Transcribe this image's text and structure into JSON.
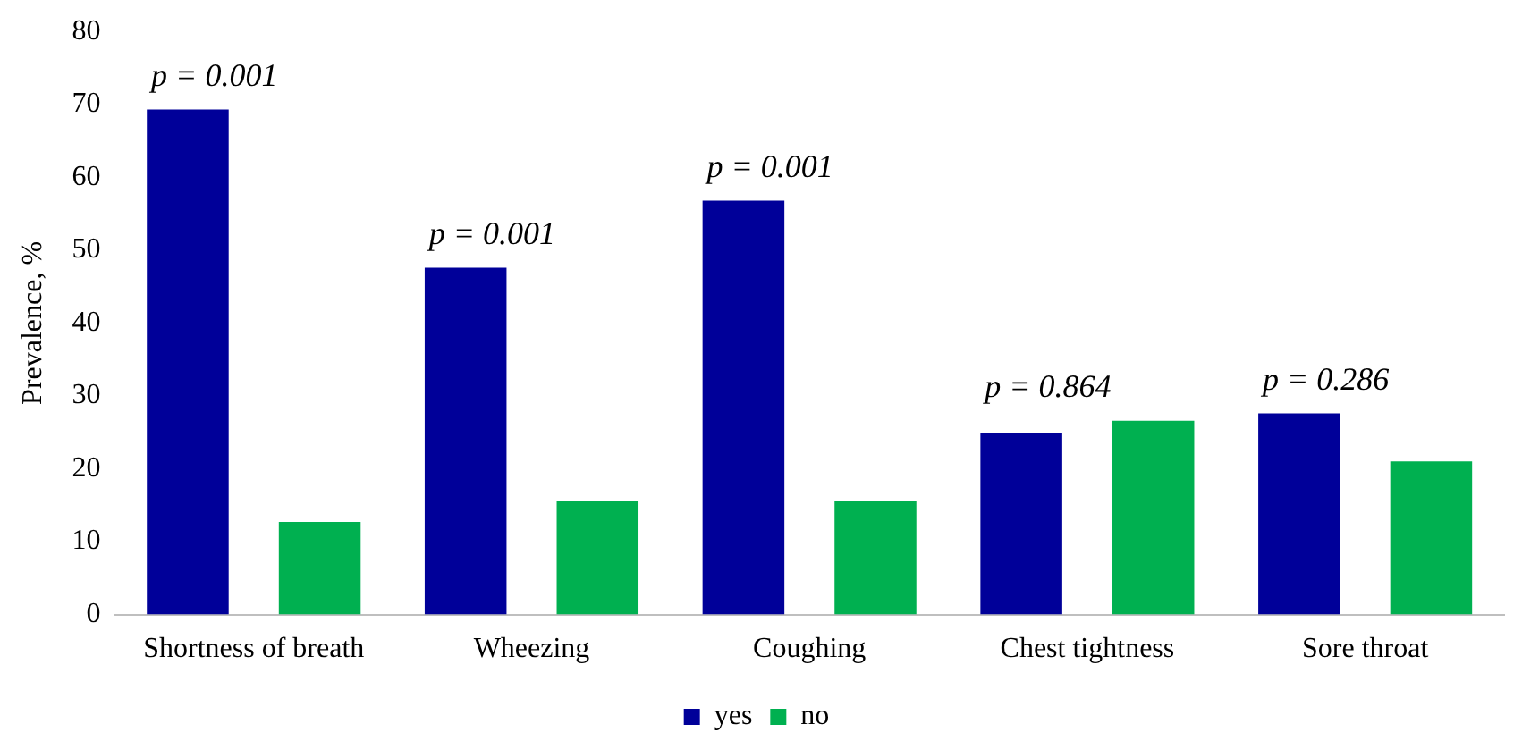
{
  "chart_data": {
    "type": "bar",
    "ylabel": "Prevalence, %",
    "categories": [
      "Shortness of breath",
      "Wheezing",
      "Coughing",
      "Chest tightness",
      "Sore throat"
    ],
    "series": [
      {
        "name": "yes",
        "color": "#000099",
        "values": [
          69.3,
          47.6,
          56.8,
          24.9,
          27.6
        ]
      },
      {
        "name": "no",
        "color": "#00b050",
        "values": [
          12.7,
          15.6,
          15.6,
          26.6,
          21
        ]
      }
    ],
    "ylim": [
      0,
      80
    ],
    "yticks": [
      0,
      10,
      20,
      30,
      40,
      50,
      60,
      70,
      80
    ],
    "grid": false,
    "legend": "bottom",
    "annotations": [
      "p = 0.001",
      "p = 0.001",
      "p = 0.001",
      "p = 0.864",
      "p = 0.286"
    ]
  }
}
